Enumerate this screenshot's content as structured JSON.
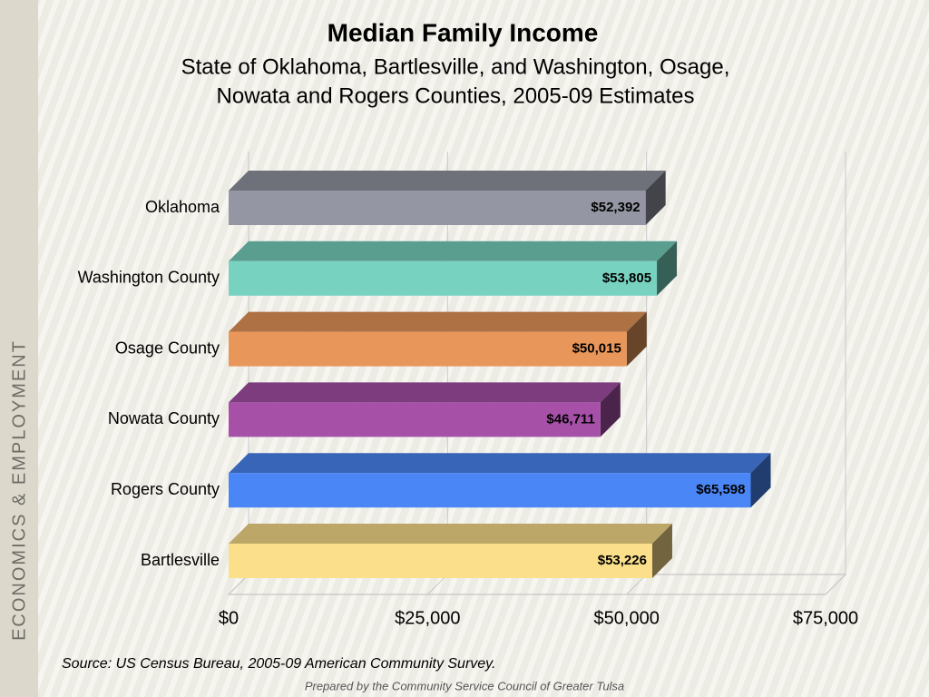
{
  "chart_data": {
    "type": "bar",
    "orientation": "horizontal",
    "title": "Median Family Income",
    "subtitle": [
      "State of Oklahoma, Bartlesville, and Washington, Osage,",
      "Nowata and Rogers Counties, 2005-09 Estimates"
    ],
    "categories": [
      "Oklahoma",
      "Washington County",
      "Osage County",
      "Nowata County",
      "Rogers County",
      "Bartlesville"
    ],
    "values": [
      52392,
      53805,
      50015,
      46711,
      65598,
      53226
    ],
    "value_labels": [
      "$52,392",
      "$53,805",
      "$50,015",
      "$46,711",
      "$65,598",
      "$53,226"
    ],
    "colors": [
      "#9497a3",
      "#78d2c0",
      "#e8965a",
      "#a650a8",
      "#4a86f5",
      "#fbdf8a"
    ],
    "xlim": [
      0,
      75000
    ],
    "xticks": [
      {
        "value": 0,
        "label": "$0"
      },
      {
        "value": 25000,
        "label": "$25,000"
      },
      {
        "value": 50000,
        "label": "$50,000"
      },
      {
        "value": 75000,
        "label": "$75,000"
      }
    ],
    "grid": true,
    "source": "Source:  US Census Bureau, 2005-09 American Community Survey."
  },
  "slide": {
    "side_label": "ECONOMICS & EMPLOYMENT",
    "footer": "Prepared by the Community Service Council of Greater Tulsa"
  }
}
